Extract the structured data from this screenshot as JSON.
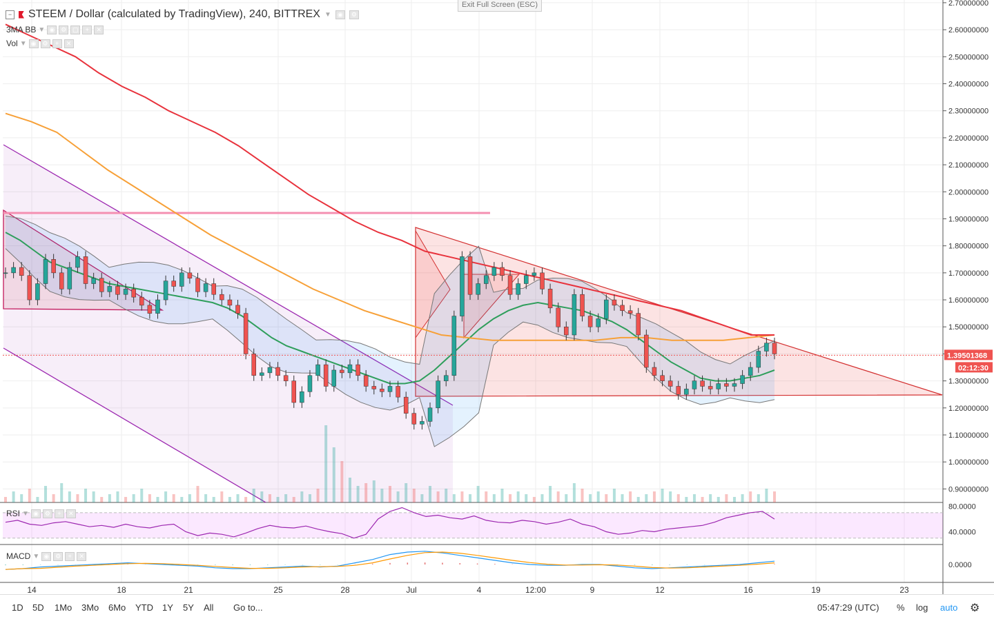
{
  "header": {
    "title": "STEEM / Dollar (calculated by TradingView), 240, BITTREX",
    "exit_fullscreen": "Exit Full Screen (ESC)",
    "indicators": [
      "3MA BB",
      "Vol"
    ]
  },
  "panes": {
    "rsi_label": "RSI",
    "macd_label": "MACD"
  },
  "toolbar": {
    "ranges": [
      "1D",
      "5D",
      "1Mo",
      "3Mo",
      "6Mo",
      "YTD",
      "1Y",
      "5Y",
      "All"
    ],
    "goto": "Go to...",
    "clock": "05:47:29 (UTC)",
    "percent": "%",
    "log": "log",
    "auto": "auto",
    "settings_icon": "gear-icon"
  },
  "colors": {
    "up": "#26a69a",
    "down": "#ef5350",
    "ma_red": "#e8323c",
    "ma_orange": "#f7a037",
    "ma_green": "#2e9e5b",
    "channel": "#9c27b0",
    "triangle": "#d32f2f",
    "rsi": "#9c27b0",
    "macd": "#2196f3",
    "signal": "#ff9800"
  },
  "chart_data": {
    "type": "candlestick",
    "symbol": "STEEM / Dollar",
    "interval": "240",
    "exchange": "BITTREX",
    "y_axis": {
      "ticks": [
        "0.90000000",
        "1.00000000",
        "1.10000000",
        "1.20000000",
        "1.30000000",
        "1.40000000",
        "1.50000000",
        "1.60000000",
        "1.70000000",
        "1.80000000",
        "1.90000000",
        "2.00000000",
        "2.10000000",
        "2.20000000",
        "2.30000000",
        "2.40000000",
        "2.50000000",
        "2.60000000",
        "2.70000000"
      ],
      "range": [
        0.85,
        2.71
      ]
    },
    "x_axis": {
      "ticks": [
        "14",
        "18",
        "21",
        "25",
        "28",
        "Jul",
        "4",
        "12:00",
        "9",
        "12",
        "16",
        "19",
        "23"
      ]
    },
    "last_price": "1.39501368",
    "countdown": "02:12:30",
    "close_series": [
      1.7,
      1.72,
      1.69,
      1.6,
      1.66,
      1.75,
      1.7,
      1.64,
      1.72,
      1.76,
      1.66,
      1.68,
      1.63,
      1.65,
      1.62,
      1.64,
      1.61,
      1.58,
      1.55,
      1.6,
      1.67,
      1.65,
      1.7,
      1.68,
      1.63,
      1.66,
      1.62,
      1.6,
      1.58,
      1.55,
      1.4,
      1.32,
      1.33,
      1.35,
      1.32,
      1.3,
      1.22,
      1.26,
      1.32,
      1.36,
      1.28,
      1.34,
      1.33,
      1.36,
      1.32,
      1.28,
      1.27,
      1.26,
      1.28,
      1.24,
      1.18,
      1.14,
      1.15,
      1.2,
      1.3,
      1.32,
      1.54,
      1.76,
      1.62,
      1.66,
      1.69,
      1.72,
      1.69,
      1.62,
      1.66,
      1.69,
      1.7,
      1.64,
      1.57,
      1.5,
      1.47,
      1.62,
      1.54,
      1.5,
      1.53,
      1.6,
      1.58,
      1.56,
      1.55,
      1.47,
      1.35,
      1.32,
      1.3,
      1.28,
      1.25,
      1.27,
      1.3,
      1.28,
      1.27,
      1.29,
      1.28,
      1.29,
      1.32,
      1.35,
      1.41,
      1.44,
      1.4
    ],
    "bb_basis": [
      1.85,
      1.82,
      1.78,
      1.74,
      1.72,
      1.7,
      1.68,
      1.66,
      1.65,
      1.64,
      1.63,
      1.62,
      1.61,
      1.6,
      1.59,
      1.57,
      1.54,
      1.5,
      1.46,
      1.43,
      1.41,
      1.39,
      1.37,
      1.35,
      1.33,
      1.31,
      1.29,
      1.29,
      1.3,
      1.34,
      1.39,
      1.44,
      1.49,
      1.53,
      1.56,
      1.58,
      1.59,
      1.58,
      1.57,
      1.56,
      1.54,
      1.52,
      1.49,
      1.45,
      1.41,
      1.37,
      1.34,
      1.31,
      1.3,
      1.3,
      1.31,
      1.32,
      1.34
    ],
    "ma_red": [
      2.62,
      2.58,
      2.54,
      2.5,
      2.44,
      2.39,
      2.35,
      2.3,
      2.26,
      2.22,
      2.17,
      2.11,
      2.05,
      1.99,
      1.94,
      1.89,
      1.85,
      1.82,
      1.78,
      1.76,
      1.74,
      1.72,
      1.7,
      1.68,
      1.66,
      1.64,
      1.62,
      1.6,
      1.58,
      1.56,
      1.53,
      1.5,
      1.47,
      1.47
    ],
    "ma_orange": [
      2.29,
      2.26,
      2.22,
      2.15,
      2.08,
      2.02,
      1.96,
      1.9,
      1.84,
      1.79,
      1.74,
      1.69,
      1.64,
      1.6,
      1.56,
      1.53,
      1.5,
      1.47,
      1.46,
      1.45,
      1.45,
      1.45,
      1.45,
      1.45,
      1.46,
      1.46,
      1.45,
      1.45,
      1.45,
      1.46,
      1.47
    ],
    "volume": [
      0.2,
      0.4,
      0.3,
      0.5,
      0.2,
      0.6,
      0.3,
      0.7,
      0.4,
      0.3,
      0.5,
      0.4,
      0.2,
      0.3,
      0.4,
      0.2,
      0.3,
      0.5,
      0.3,
      0.2,
      0.4,
      0.3,
      0.2,
      0.3,
      0.6,
      0.3,
      0.2,
      0.4,
      0.2,
      0.3,
      0.2,
      0.5,
      0.4,
      0.3,
      0.2,
      0.3,
      0.2,
      0.4,
      0.3,
      0.5,
      2.8,
      2.0,
      1.5,
      0.9,
      0.6,
      0.7,
      0.8,
      0.5,
      0.6,
      0.4,
      0.7,
      0.5,
      0.3,
      0.6,
      0.4,
      0.5,
      0.3,
      0.4,
      0.3,
      0.6,
      0.4,
      0.3,
      0.5,
      0.3,
      0.4,
      0.3,
      0.2,
      0.3,
      0.6,
      0.4,
      0.3,
      0.7,
      0.5,
      0.3,
      0.4,
      0.3,
      0.5,
      0.3,
      0.4,
      0.2,
      0.3,
      0.4,
      0.5,
      0.4,
      0.3,
      0.2,
      0.3,
      0.2,
      0.3,
      0.2,
      0.3,
      0.2,
      0.3,
      0.4,
      0.3,
      0.5,
      0.4
    ],
    "rsi": {
      "ticks": [
        "80.0000",
        "40.0000"
      ],
      "values": [
        55,
        58,
        52,
        50,
        54,
        56,
        52,
        48,
        50,
        47,
        52,
        48,
        46,
        50,
        52,
        40,
        34,
        38,
        36,
        32,
        38,
        45,
        50,
        47,
        46,
        49,
        44,
        40,
        37,
        30,
        36,
        60,
        72,
        78,
        70,
        64,
        66,
        62,
        60,
        65,
        58,
        55,
        54,
        58,
        56,
        52,
        55,
        60,
        52,
        48,
        40,
        36,
        38,
        42,
        40,
        44,
        46,
        48,
        50,
        55,
        62,
        66,
        70,
        72,
        60
      ]
    },
    "macd": {
      "ticks": [
        "0.0000"
      ],
      "values": [
        -0.06,
        -0.05,
        -0.03,
        -0.02,
        -0.01,
        0.0,
        0.01,
        0.02,
        0.01,
        0.0,
        -0.01,
        -0.02,
        -0.04,
        -0.05,
        -0.05,
        -0.04,
        -0.03,
        -0.02,
        -0.03,
        -0.02,
        0.02,
        0.06,
        0.12,
        0.15,
        0.16,
        0.14,
        0.11,
        0.08,
        0.05,
        0.02,
        0.0,
        -0.01,
        -0.01,
        0.0,
        0.0,
        -0.02,
        -0.04,
        -0.05,
        -0.04,
        -0.03,
        -0.02,
        -0.01,
        0.0,
        0.02,
        0.04
      ]
    }
  }
}
